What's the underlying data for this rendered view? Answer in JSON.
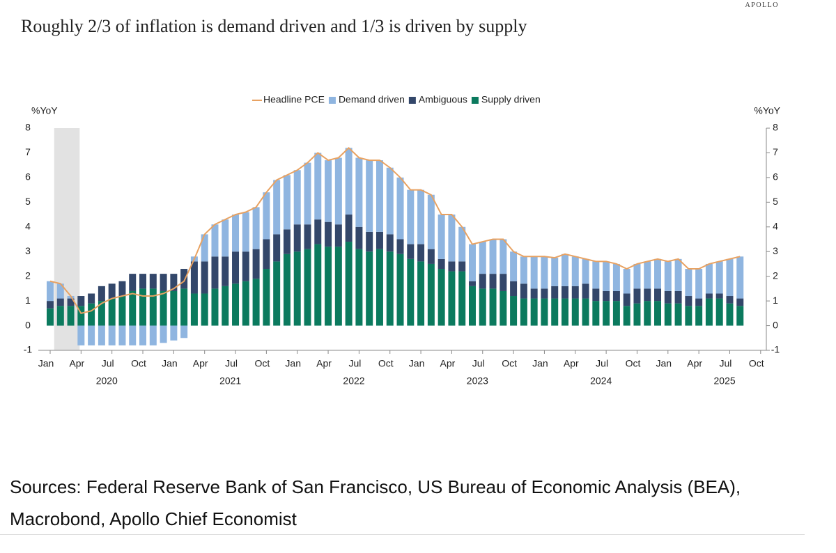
{
  "brand": "APOLLO",
  "sources": "Sources: Federal Reserve Bank of San Francisco, US Bureau of Economic Analysis (BEA), Macrobond, Apollo Chief Economist",
  "chart_data": {
    "type": "stacked_bar_line",
    "title": "Roughly 2/3 of inflation is demand driven and 1/3 is driven by supply",
    "y_label": "%YoY",
    "y2_label": "%YoY",
    "ylim": [
      -1,
      8
    ],
    "yticks": [
      -1,
      0,
      1,
      2,
      3,
      4,
      5,
      6,
      7,
      8
    ],
    "categories": [
      "Jan",
      null,
      null,
      "Apr",
      null,
      null,
      "Jul",
      null,
      null,
      "Oct",
      null,
      null,
      "Jan",
      null,
      null,
      "Apr",
      null,
      null,
      "Jul",
      null,
      null,
      "Oct",
      null,
      null,
      "Jan",
      null,
      null,
      "Apr",
      null,
      null,
      "Jul",
      null,
      null,
      "Oct",
      null,
      null,
      "Jan",
      null,
      null,
      "Apr",
      null,
      null,
      "Jul",
      null,
      null,
      "Oct",
      null,
      null,
      "Jan",
      null,
      null,
      "Apr",
      null,
      null,
      "Jul",
      null,
      null,
      "Oct",
      null,
      null,
      "Jan",
      null,
      null,
      "Apr",
      null,
      null,
      "Jul",
      null,
      null,
      "Oct"
    ],
    "years": [
      "2020",
      "2021",
      "2022",
      "2023",
      "2024",
      "2025"
    ],
    "series": [
      {
        "name": "Headline PCE",
        "kind": "line",
        "color": "#e8a262",
        "values": [
          1.8,
          1.7,
          1.2,
          0.5,
          0.6,
          0.9,
          1.1,
          1.2,
          1.3,
          1.2,
          1.2,
          1.3,
          1.5,
          1.8,
          2.7,
          3.7,
          4.1,
          4.3,
          4.5,
          4.6,
          4.8,
          5.4,
          5.9,
          6.1,
          6.3,
          6.6,
          7.0,
          6.7,
          6.8,
          7.2,
          6.8,
          6.7,
          6.7,
          6.4,
          6.0,
          5.5,
          5.5,
          5.3,
          4.5,
          4.5,
          4.0,
          3.3,
          3.4,
          3.5,
          3.5,
          3.0,
          2.8,
          2.8,
          2.8,
          2.75,
          2.9,
          2.8,
          2.7,
          2.6,
          2.6,
          2.5,
          2.3,
          2.5,
          2.6,
          2.7,
          2.6,
          2.7,
          2.3,
          2.3,
          2.5,
          2.6,
          2.7,
          2.8,
          null,
          null
        ]
      },
      {
        "name": "Demand driven",
        "kind": "bar",
        "color": "#8fb5e0",
        "values": [
          0.8,
          0.6,
          0.1,
          -0.8,
          -0.8,
          -0.8,
          -0.8,
          -0.8,
          -0.8,
          -0.8,
          -0.8,
          -0.7,
          -0.6,
          -0.5,
          0.2,
          1.1,
          1.3,
          1.5,
          1.5,
          1.6,
          1.7,
          1.9,
          2.2,
          2.2,
          2.2,
          2.5,
          2.7,
          2.5,
          2.7,
          2.7,
          2.8,
          2.9,
          2.9,
          2.7,
          2.5,
          2.2,
          2.2,
          2.2,
          1.8,
          1.9,
          1.4,
          1.5,
          1.3,
          1.4,
          1.4,
          1.2,
          1.1,
          1.3,
          1.3,
          1.15,
          1.3,
          1.2,
          1.0,
          1.1,
          1.2,
          1.1,
          1.0,
          1.0,
          1.1,
          1.2,
          1.2,
          1.3,
          1.1,
          1.2,
          1.2,
          1.3,
          1.5,
          1.7,
          null,
          null
        ]
      },
      {
        "name": "Ambiguous",
        "kind": "bar",
        "color": "#33476a",
        "values": [
          0.3,
          0.3,
          0.3,
          0.4,
          0.4,
          0.6,
          0.6,
          0.6,
          0.7,
          0.6,
          0.6,
          0.7,
          0.7,
          0.8,
          1.3,
          1.3,
          1.3,
          1.2,
          1.3,
          1.2,
          1.2,
          1.2,
          1.1,
          1.0,
          1.1,
          1.0,
          1.0,
          1.0,
          0.9,
          1.1,
          0.9,
          0.8,
          0.7,
          0.7,
          0.6,
          0.6,
          0.7,
          0.6,
          0.4,
          0.4,
          0.4,
          0.2,
          0.6,
          0.6,
          0.7,
          0.6,
          0.6,
          0.4,
          0.4,
          0.5,
          0.5,
          0.5,
          0.6,
          0.5,
          0.4,
          0.4,
          0.5,
          0.6,
          0.5,
          0.5,
          0.5,
          0.5,
          0.4,
          0.3,
          0.2,
          0.2,
          0.3,
          0.3,
          null,
          null
        ]
      },
      {
        "name": "Supply driven",
        "kind": "bar",
        "color": "#0b7a5e",
        "values": [
          0.7,
          0.8,
          0.8,
          0.8,
          0.9,
          1.0,
          1.1,
          1.2,
          1.4,
          1.5,
          1.5,
          1.4,
          1.4,
          1.5,
          1.3,
          1.3,
          1.5,
          1.6,
          1.7,
          1.8,
          1.9,
          2.3,
          2.6,
          2.9,
          3.0,
          3.1,
          3.3,
          3.2,
          3.2,
          3.4,
          3.1,
          3.0,
          3.1,
          3.0,
          2.9,
          2.7,
          2.6,
          2.5,
          2.3,
          2.2,
          2.2,
          1.6,
          1.5,
          1.5,
          1.4,
          1.2,
          1.1,
          1.1,
          1.1,
          1.1,
          1.1,
          1.1,
          1.1,
          1.0,
          1.0,
          1.0,
          0.8,
          0.9,
          1.0,
          1.0,
          0.9,
          0.9,
          0.8,
          0.8,
          1.1,
          1.1,
          0.9,
          0.8,
          null,
          null
        ]
      }
    ]
  }
}
